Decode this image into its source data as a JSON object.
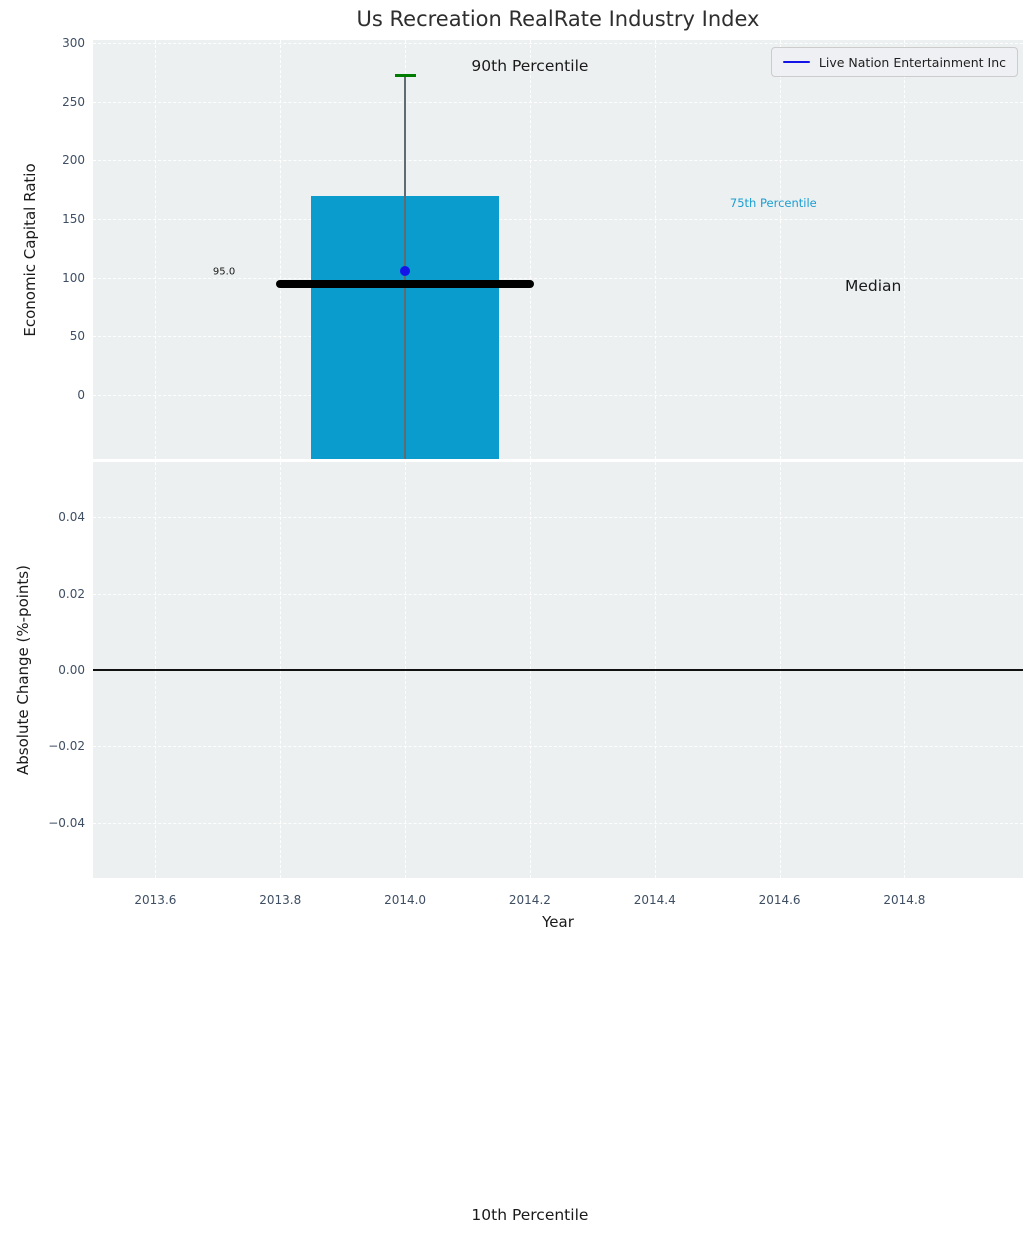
{
  "title": "Us Recreation RealRate Industry Index",
  "legend": {
    "label": "Live Nation Entertainment Inc",
    "line_color": "#1414e8"
  },
  "colors": {
    "figure_bg": "#ffffff",
    "plot_bg": "#edf0f1",
    "grid": "#ffffff",
    "tick_label": "#3e4e63",
    "bar": "#0a9ccd",
    "whisker": "#5f6b72",
    "cap_green": "#007d00",
    "point_blue": "#1414e8",
    "median_black": "#000000",
    "zero_line": "#111111",
    "annotation_cyan": "#1b9ed1"
  },
  "xaxis": {
    "label": "Year",
    "tick_values": [
      2013.6,
      2013.8,
      2014.0,
      2014.2,
      2014.4,
      2014.6,
      2014.8
    ],
    "tick_labels": [
      "2013.6",
      "2013.8",
      "2014.0",
      "2014.2",
      "2014.4",
      "2014.6",
      "2014.8"
    ],
    "xlim": [
      2013.5,
      2014.99
    ]
  },
  "chart_data": [
    {
      "type": "bar",
      "title": "Us Recreation RealRate Industry Index",
      "ylabel": "Economic Capital Ratio",
      "xlabel": "Year",
      "ylim": [
        -54.5,
        302.5
      ],
      "grid": true,
      "yticks": {
        "values": [
          300,
          250,
          200,
          150,
          100,
          50,
          0
        ],
        "labels": [
          "300",
          "250",
          "200",
          "150",
          "100",
          "50",
          "0"
        ]
      },
      "x_center": 2014.0,
      "bar": {
        "x0": 2013.85,
        "x1": 2014.15,
        "top_value": 170,
        "bottom_clipped": true
      },
      "whisker": {
        "x": 2014.0,
        "top_value": 272,
        "bottom_offscale_below_axis": true
      },
      "percentiles": {
        "p90": 272,
        "p75": 170,
        "median": 95,
        "p10_visible": false
      },
      "median_line": {
        "x0": 2013.8,
        "x1": 2014.2,
        "y": 95,
        "value_label": "95.0",
        "thickness_px": 8
      },
      "company_point": {
        "name": "Live Nation Entertainment Inc",
        "x": 2014.0,
        "y": 106
      },
      "legend_position": "upper right",
      "annotations": [
        {
          "text": "90th Percentile",
          "x": 2014.2,
          "y": 280,
          "size": 15.5,
          "color": "#1a1a1a"
        },
        {
          "text": "75th Percentile",
          "x": 2014.59,
          "y": 164,
          "size": 11.5,
          "color": "#1b9ed1"
        },
        {
          "text": "Median",
          "x": 2014.75,
          "y": 93,
          "size": 15.5,
          "color": "#1a1a1a"
        },
        {
          "text": "95.0",
          "x": 2013.71,
          "y": 105,
          "size": 10,
          "color": "#1a1a1a"
        },
        {
          "text": "10th Percentile",
          "x": 2014.2,
          "y": -699,
          "size": 15.5,
          "color": "#1a1a1a"
        }
      ]
    },
    {
      "type": "line",
      "ylabel": "Absolute Change (%-points)",
      "ylim": [
        -0.0545,
        0.0545
      ],
      "grid": true,
      "yticks": {
        "values": [
          0.04,
          0.02,
          0.0,
          -0.02,
          -0.04
        ],
        "labels": [
          "0.04",
          "0.02",
          "0.00",
          "−0.02",
          "−0.04"
        ]
      },
      "zero_line_y": 0.0,
      "series": [
        {
          "name": "Live Nation Entertainment Inc",
          "points": []
        }
      ]
    }
  ]
}
